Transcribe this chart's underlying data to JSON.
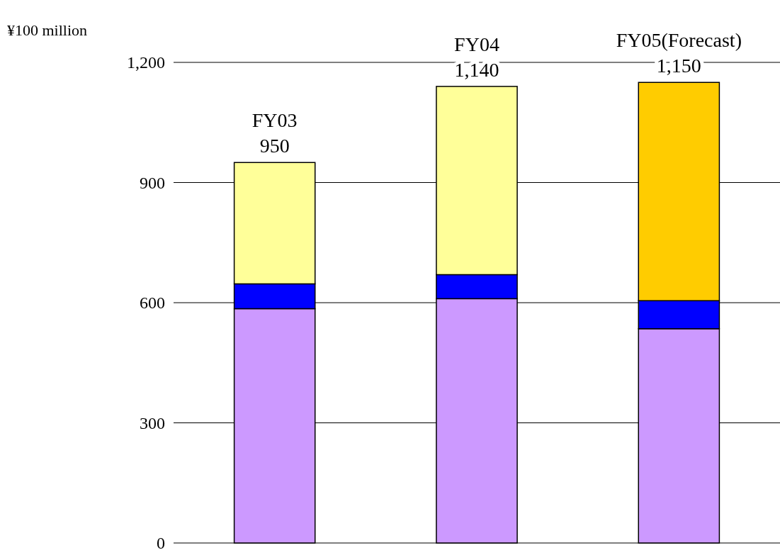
{
  "chart_data": {
    "type": "bar",
    "stacked": true,
    "ylabel": "¥100 million",
    "categories": [
      "FY03",
      "FY04",
      "FY05(Forecast)"
    ],
    "series": [
      {
        "color": "#cc99ff",
        "values": [
          585,
          610,
          535
        ]
      },
      {
        "color": "#0000ff",
        "values": [
          62,
          60,
          70
        ]
      },
      {
        "colors": [
          "#ffff99",
          "#ffff99",
          "#ffcc00"
        ],
        "values": [
          303,
          470,
          545
        ]
      }
    ],
    "totals": [
      "950",
      "1,140",
      "1,150"
    ],
    "ylim": [
      0,
      1200
    ],
    "yticks": [
      0,
      300,
      600,
      900,
      {
        "value": 1200,
        "label": "1,200"
      }
    ],
    "grid": "y"
  }
}
